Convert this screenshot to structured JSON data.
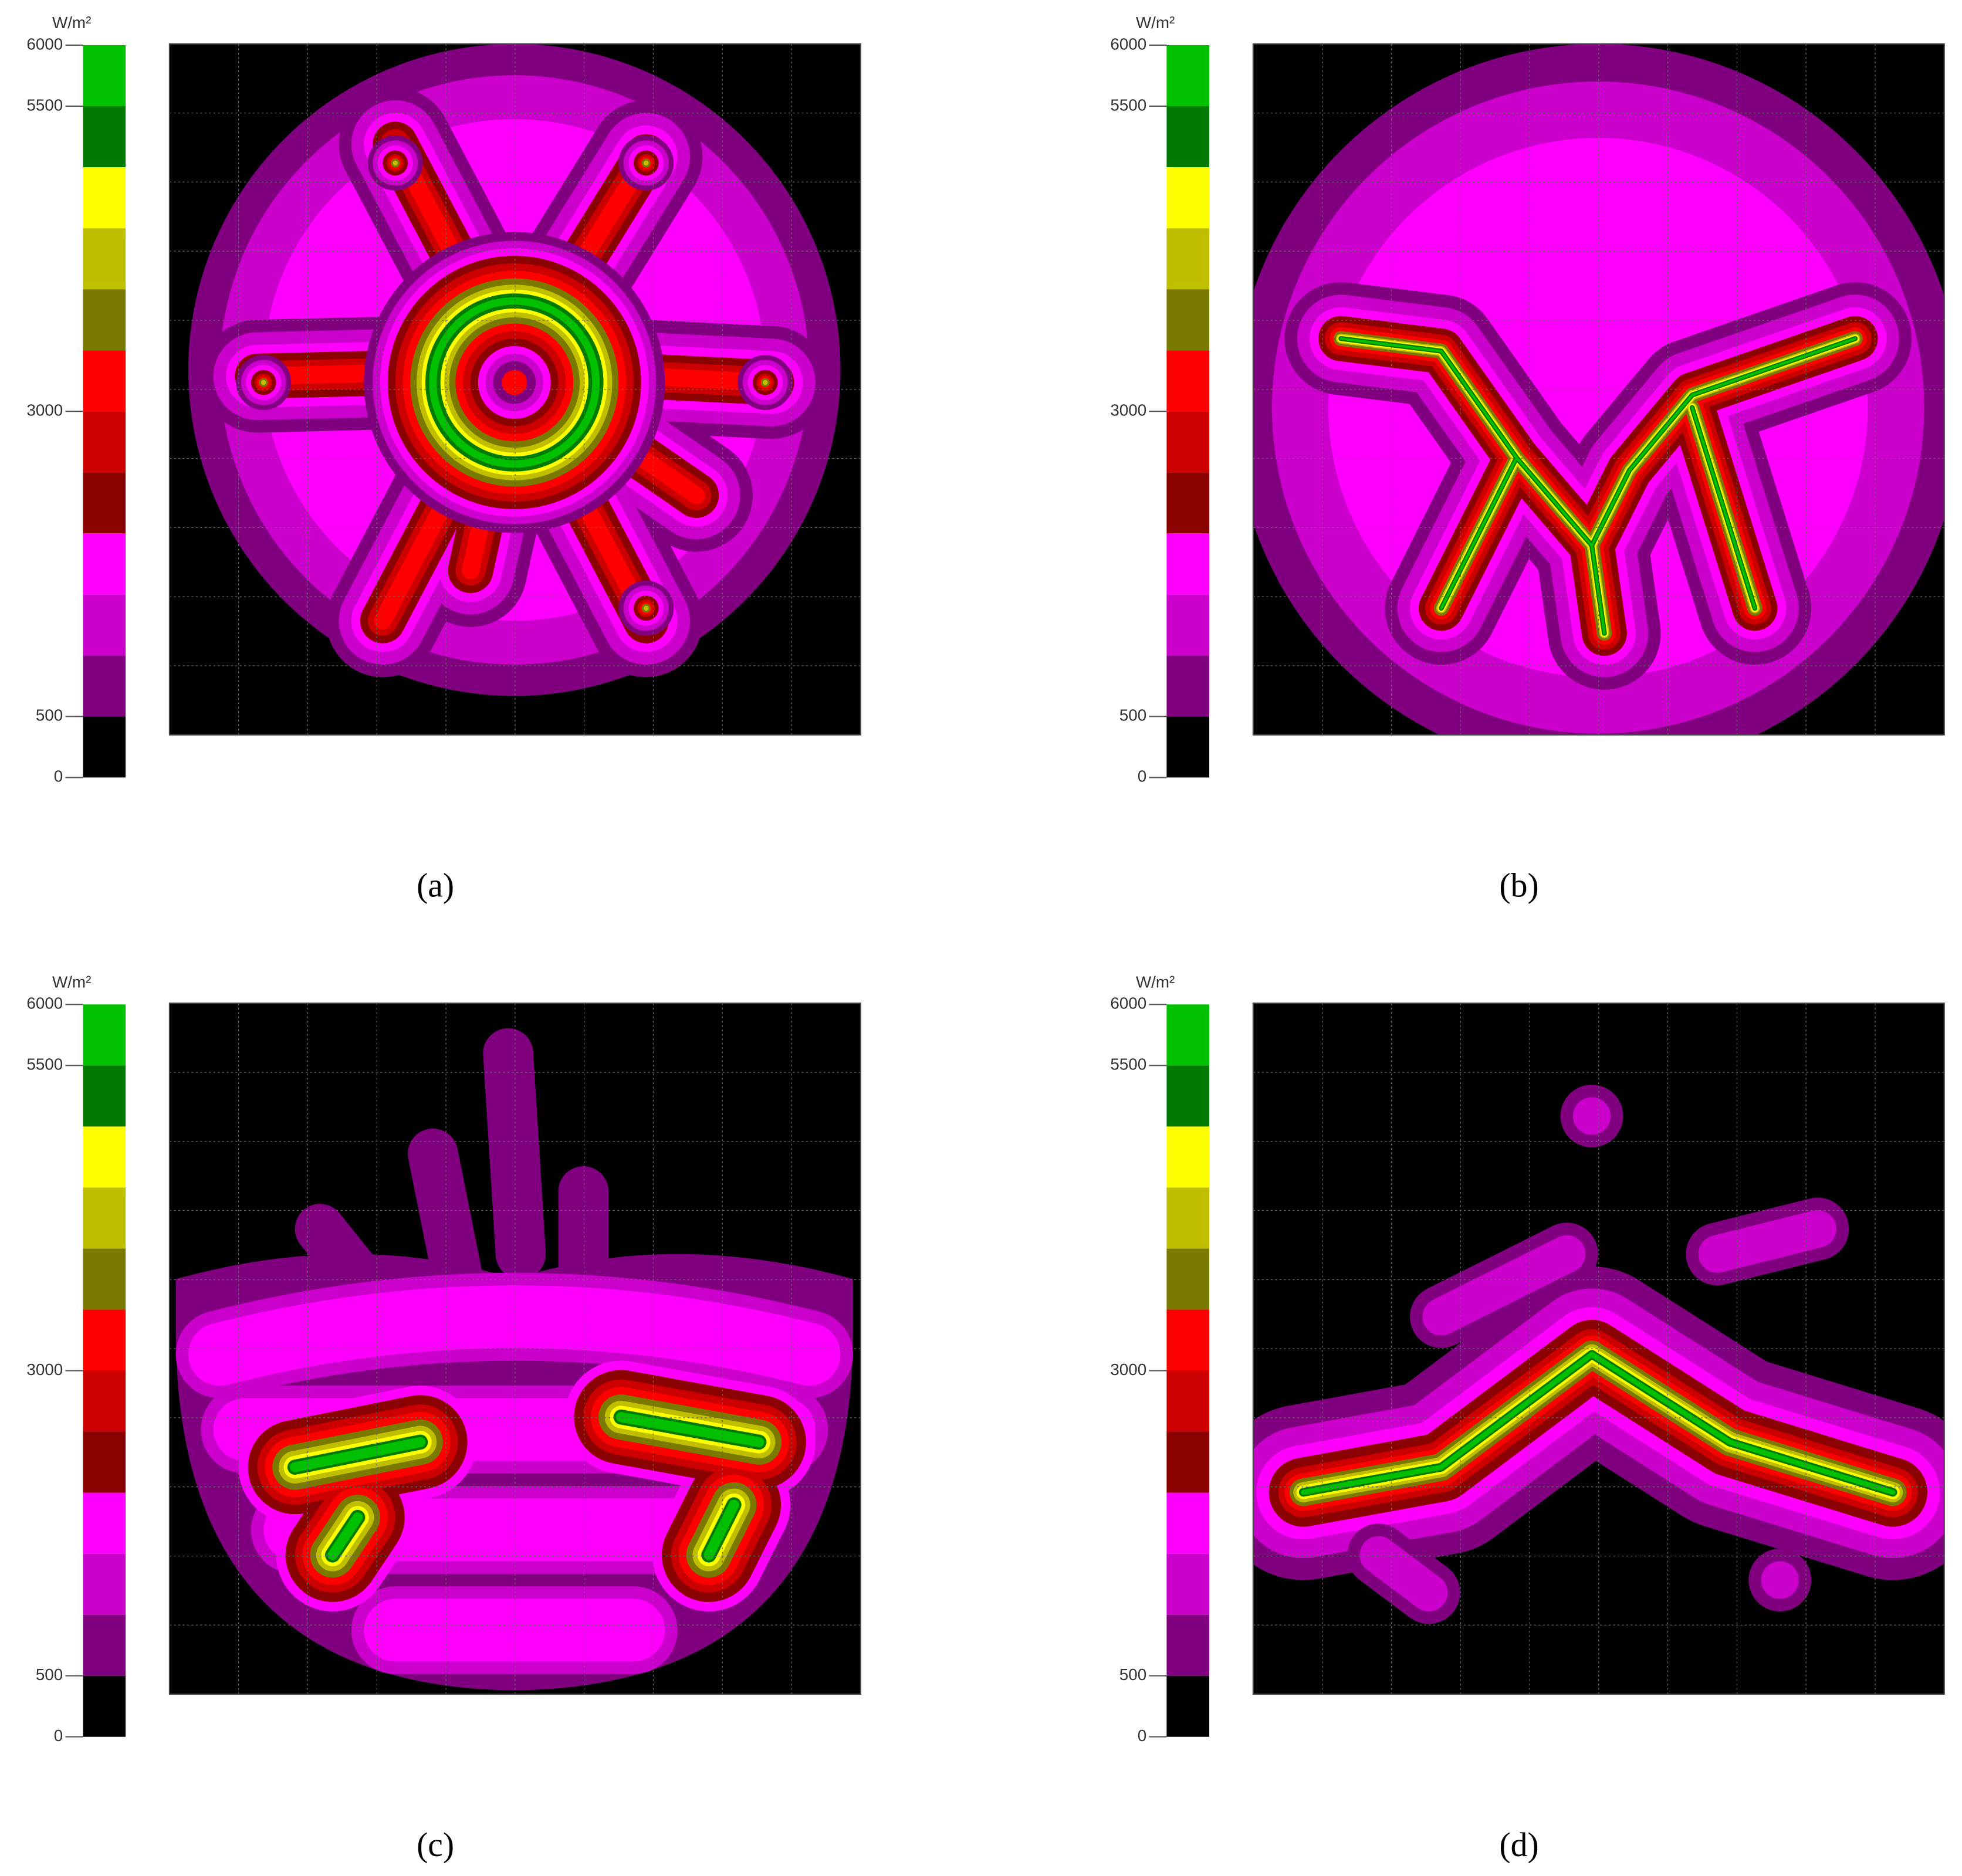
{
  "chart_data": [
    {
      "type": "heatmap",
      "caption": "(a)",
      "colorbar": {
        "label": "W/m²",
        "lim": [
          0,
          6000
        ],
        "ticks": [
          0,
          500,
          3000,
          5500,
          6000
        ],
        "colors": [
          "#000000",
          "#800080",
          "#cc00cc",
          "#ff00ff",
          "#8b0000",
          "#cc0000",
          "#ff0000",
          "#7a7a00",
          "#bfbf00",
          "#ffff00",
          "#007a00",
          "#00c000"
        ]
      }
    },
    {
      "type": "heatmap",
      "caption": "(b)",
      "colorbar": {
        "label": "W/m²",
        "lim": [
          0,
          6000
        ],
        "ticks": [
          0,
          500,
          3000,
          5500,
          6000
        ],
        "colors": [
          "#000000",
          "#800080",
          "#cc00cc",
          "#ff00ff",
          "#8b0000",
          "#cc0000",
          "#ff0000",
          "#7a7a00",
          "#bfbf00",
          "#ffff00",
          "#007a00",
          "#00c000"
        ]
      }
    },
    {
      "type": "heatmap",
      "caption": "(c)",
      "colorbar": {
        "label": "W/m²",
        "lim": [
          0,
          6000
        ],
        "ticks": [
          0,
          500,
          3000,
          5500,
          6000
        ],
        "colors": [
          "#000000",
          "#800080",
          "#cc00cc",
          "#ff00ff",
          "#8b0000",
          "#cc0000",
          "#ff0000",
          "#7a7a00",
          "#bfbf00",
          "#ffff00",
          "#007a00",
          "#00c000"
        ]
      }
    },
    {
      "type": "heatmap",
      "caption": "(d)",
      "colorbar": {
        "label": "W/m²",
        "lim": [
          0,
          6000
        ],
        "ticks": [
          0,
          500,
          3000,
          5500,
          6000
        ],
        "colors": [
          "#000000",
          "#800080",
          "#cc00cc",
          "#ff00ff",
          "#8b0000",
          "#cc0000",
          "#ff0000",
          "#7a7a00",
          "#bfbf00",
          "#ffff00",
          "#007a00",
          "#00c000"
        ]
      }
    }
  ]
}
